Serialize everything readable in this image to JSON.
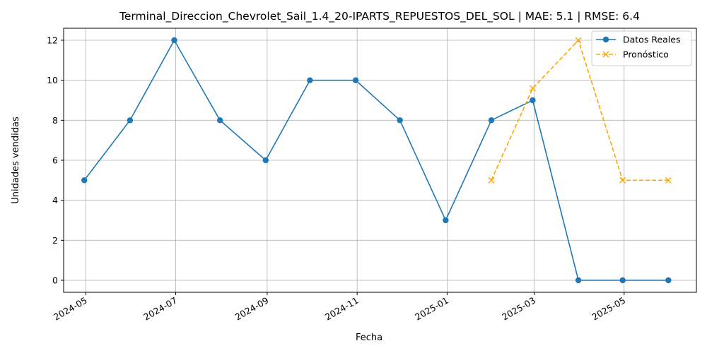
{
  "chart_data": {
    "type": "line",
    "title": "Terminal_Direccion_Chevrolet_Sail_1.4_20-IPARTS_REPUESTOS_DEL_SOL | MAE: 5.1 | RMSE: 6.4",
    "xlabel": "Fecha",
    "ylabel": "Unidades vendidas",
    "xlim": [
      "2024-04-16",
      "2025-06-19"
    ],
    "ylim": [
      -0.6,
      12.6
    ],
    "grid": true,
    "legend_position": "top-right",
    "x_ticks": [
      "2024-05",
      "2024-07",
      "2024-09",
      "2024-11",
      "2025-01",
      "2025-03",
      "2025-05"
    ],
    "y_ticks": [
      0,
      2,
      4,
      6,
      8,
      10,
      12
    ],
    "series": [
      {
        "name": "Datos Reales",
        "style": "solid",
        "marker": "circle",
        "color": "#1f77b4",
        "x": [
          "2024-04-30",
          "2024-05-31",
          "2024-06-30",
          "2024-07-31",
          "2024-08-31",
          "2024-09-30",
          "2024-10-31",
          "2024-11-30",
          "2024-12-31",
          "2025-01-31",
          "2025-02-28",
          "2025-03-31",
          "2025-04-30",
          "2025-05-31"
        ],
        "values": [
          5,
          8,
          12,
          8,
          6,
          10,
          10,
          8,
          3,
          8,
          9,
          0,
          0,
          0
        ]
      },
      {
        "name": "Pronóstico",
        "style": "dashed",
        "marker": "x",
        "color": "#ffa500",
        "x": [
          "2025-01-31",
          "2025-02-28",
          "2025-03-31",
          "2025-04-30",
          "2025-05-31"
        ],
        "values": [
          5,
          9.6,
          12,
          5,
          5
        ]
      }
    ]
  }
}
